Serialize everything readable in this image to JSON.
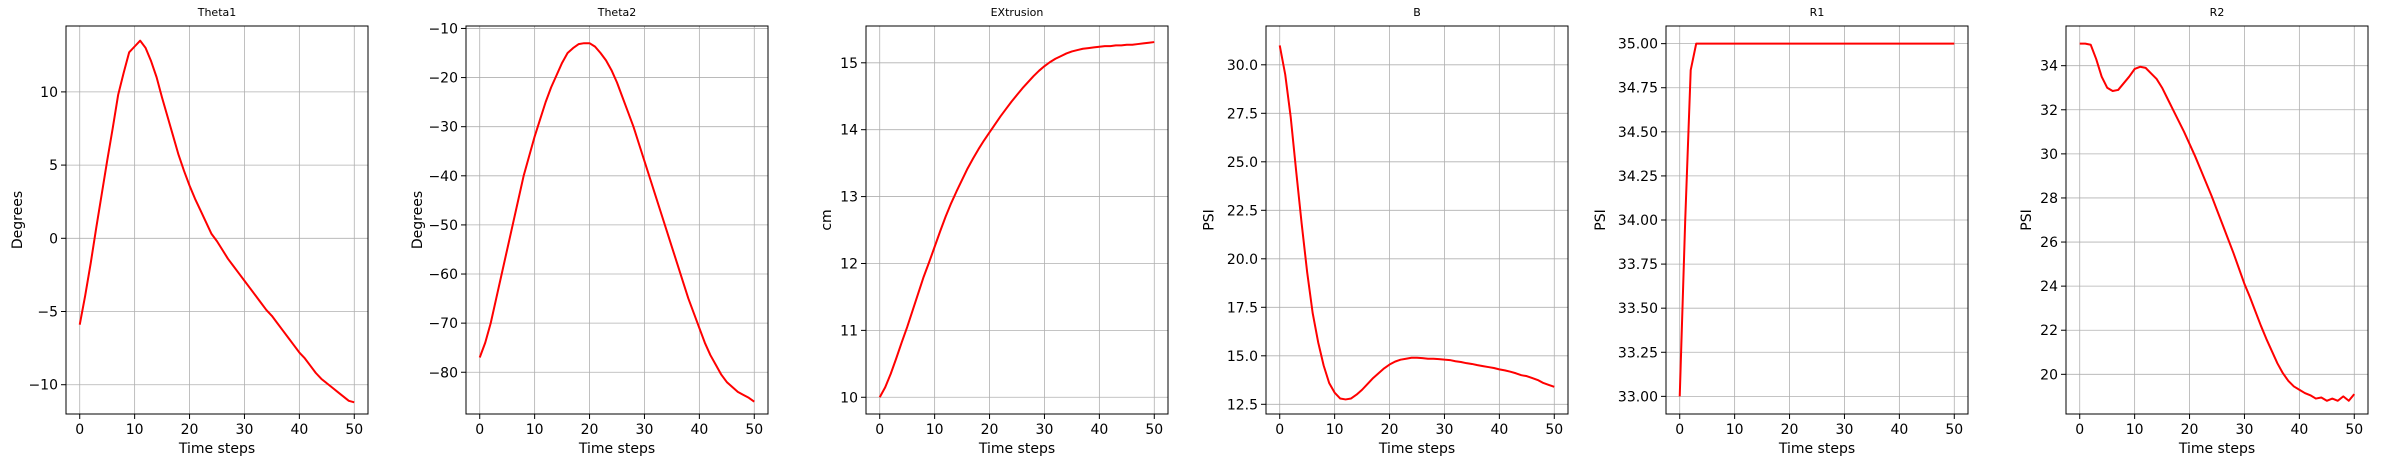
{
  "chart_data": [
    {
      "type": "line",
      "title": "Theta1",
      "xlabel": "Time steps",
      "ylabel": "Degrees",
      "xlim": [
        -2.5,
        52.5
      ],
      "ylim": [
        -12,
        14.5
      ],
      "xticks": [
        0,
        10,
        20,
        30,
        40,
        50
      ],
      "yticks": [
        -10,
        -5,
        0,
        5,
        10
      ],
      "grid": true,
      "color": "#ff0000",
      "x": [
        0,
        1,
        2,
        3,
        4,
        5,
        6,
        7,
        8,
        9,
        10,
        11,
        12,
        13,
        14,
        15,
        16,
        17,
        18,
        19,
        20,
        21,
        22,
        23,
        24,
        25,
        26,
        27,
        28,
        29,
        30,
        31,
        32,
        33,
        34,
        35,
        36,
        37,
        38,
        39,
        40,
        41,
        42,
        43,
        44,
        45,
        46,
        47,
        48,
        49,
        50
      ],
      "y": [
        -5.9,
        -3.9,
        -1.7,
        0.7,
        3.0,
        5.3,
        7.5,
        9.8,
        11.3,
        12.7,
        13.1,
        13.5,
        13.0,
        12.1,
        11.0,
        9.6,
        8.3,
        7.0,
        5.7,
        4.6,
        3.6,
        2.7,
        1.9,
        1.1,
        0.3,
        -0.2,
        -0.8,
        -1.4,
        -1.9,
        -2.4,
        -2.9,
        -3.4,
        -3.9,
        -4.4,
        -4.9,
        -5.3,
        -5.8,
        -6.3,
        -6.8,
        -7.3,
        -7.8,
        -8.2,
        -8.7,
        -9.2,
        -9.6,
        -9.9,
        -10.2,
        -10.5,
        -10.8,
        -11.1,
        -11.2
      ]
    },
    {
      "type": "line",
      "title": "Theta2",
      "xlabel": "Time steps",
      "ylabel": "Degrees",
      "xlim": [
        -2.5,
        52.5
      ],
      "ylim": [
        -88.5,
        -9.5
      ],
      "xticks": [
        0,
        10,
        20,
        30,
        40,
        50
      ],
      "yticks": [
        -80,
        -70,
        -60,
        -50,
        -40,
        -30,
        -20,
        -10
      ],
      "grid": true,
      "color": "#ff0000",
      "x": [
        0,
        1,
        2,
        3,
        4,
        5,
        6,
        7,
        8,
        9,
        10,
        11,
        12,
        13,
        14,
        15,
        16,
        17,
        18,
        19,
        20,
        21,
        22,
        23,
        24,
        25,
        26,
        27,
        28,
        29,
        30,
        31,
        32,
        33,
        34,
        35,
        36,
        37,
        38,
        39,
        40,
        41,
        42,
        43,
        44,
        45,
        46,
        47,
        48,
        49,
        50
      ],
      "y": [
        -77,
        -74,
        -70,
        -65,
        -60,
        -55,
        -50,
        -45,
        -40,
        -36,
        -32,
        -28.5,
        -25,
        -22,
        -19.5,
        -17,
        -15,
        -14,
        -13.2,
        -13,
        -13,
        -13.7,
        -15,
        -16.5,
        -18.5,
        -21,
        -24,
        -27,
        -30,
        -33.5,
        -37,
        -40.5,
        -44,
        -47.5,
        -51,
        -54.5,
        -58,
        -61.5,
        -65,
        -68,
        -71,
        -74,
        -76.5,
        -78.5,
        -80.5,
        -82,
        -83,
        -84,
        -84.6,
        -85.2,
        -86
      ]
    },
    {
      "type": "line",
      "title": "EXtrusion",
      "xlabel": "Time steps",
      "ylabel": "cm",
      "xlim": [
        -2.5,
        52.5
      ],
      "ylim": [
        9.75,
        15.55
      ],
      "xticks": [
        0,
        10,
        20,
        30,
        40,
        50
      ],
      "yticks": [
        10,
        11,
        12,
        13,
        14,
        15
      ],
      "grid": true,
      "color": "#ff0000",
      "x": [
        0,
        1,
        2,
        3,
        4,
        5,
        6,
        7,
        8,
        9,
        10,
        11,
        12,
        13,
        14,
        15,
        16,
        17,
        18,
        19,
        20,
        21,
        22,
        23,
        24,
        25,
        26,
        27,
        28,
        29,
        30,
        31,
        32,
        33,
        34,
        35,
        36,
        37,
        38,
        39,
        40,
        41,
        42,
        43,
        44,
        45,
        46,
        47,
        48,
        49,
        50
      ],
      "y": [
        10.0,
        10.15,
        10.35,
        10.58,
        10.82,
        11.05,
        11.3,
        11.55,
        11.8,
        12.02,
        12.25,
        12.48,
        12.7,
        12.9,
        13.08,
        13.25,
        13.42,
        13.57,
        13.71,
        13.84,
        13.96,
        14.08,
        14.2,
        14.31,
        14.42,
        14.52,
        14.62,
        14.71,
        14.8,
        14.88,
        14.95,
        15.01,
        15.06,
        15.1,
        15.14,
        15.17,
        15.19,
        15.21,
        15.22,
        15.23,
        15.24,
        15.25,
        15.25,
        15.26,
        15.26,
        15.27,
        15.27,
        15.28,
        15.29,
        15.3,
        15.31
      ]
    },
    {
      "type": "line",
      "title": "B",
      "xlabel": "Time steps",
      "ylabel": "PSI",
      "xlim": [
        -2.5,
        52.5
      ],
      "ylim": [
        12.0,
        32.0
      ],
      "xticks": [
        0,
        10,
        20,
        30,
        40,
        50
      ],
      "yticks": [
        12.5,
        15.0,
        17.5,
        20.0,
        22.5,
        25.0,
        27.5,
        30.0
      ],
      "tick_labels_y": [
        "12.5",
        "15.0",
        "17.5",
        "20.0",
        "22.5",
        "25.0",
        "27.5",
        "30.0"
      ],
      "grid": true,
      "color": "#ff0000",
      "x": [
        0,
        1,
        2,
        3,
        4,
        5,
        6,
        7,
        8,
        9,
        10,
        11,
        12,
        13,
        14,
        15,
        16,
        17,
        18,
        19,
        20,
        21,
        22,
        23,
        24,
        25,
        26,
        27,
        28,
        29,
        30,
        31,
        32,
        33,
        34,
        35,
        36,
        37,
        38,
        39,
        40,
        41,
        42,
        43,
        44,
        45,
        46,
        47,
        48,
        49,
        50
      ],
      "y": [
        31.0,
        29.5,
        27.3,
        24.5,
        21.8,
        19.3,
        17.2,
        15.7,
        14.5,
        13.6,
        13.1,
        12.8,
        12.75,
        12.8,
        13.0,
        13.25,
        13.55,
        13.85,
        14.1,
        14.35,
        14.55,
        14.7,
        14.8,
        14.85,
        14.9,
        14.9,
        14.88,
        14.85,
        14.85,
        14.83,
        14.8,
        14.78,
        14.72,
        14.68,
        14.62,
        14.58,
        14.52,
        14.47,
        14.42,
        14.37,
        14.3,
        14.25,
        14.18,
        14.1,
        14.0,
        13.95,
        13.85,
        13.75,
        13.6,
        13.5,
        13.4
      ]
    },
    {
      "type": "line",
      "title": "R1",
      "xlabel": "Time steps",
      "ylabel": "PSI",
      "xlim": [
        -2.5,
        52.5
      ],
      "ylim": [
        32.9,
        35.1
      ],
      "xticks": [
        0,
        10,
        20,
        30,
        40,
        50
      ],
      "yticks": [
        33.0,
        33.25,
        33.5,
        33.75,
        34.0,
        34.25,
        34.5,
        34.75,
        35.0
      ],
      "tick_labels_y": [
        "33.00",
        "33.25",
        "33.50",
        "33.75",
        "34.00",
        "34.25",
        "34.50",
        "34.75",
        "35.00"
      ],
      "grid": true,
      "color": "#ff0000",
      "x": [
        0,
        1,
        2,
        3,
        4,
        5,
        6,
        7,
        8,
        9,
        10,
        11,
        12,
        13,
        14,
        15,
        16,
        17,
        18,
        19,
        20,
        21,
        22,
        23,
        24,
        25,
        26,
        27,
        28,
        29,
        30,
        31,
        32,
        33,
        34,
        35,
        36,
        37,
        38,
        39,
        40,
        41,
        42,
        43,
        44,
        45,
        46,
        47,
        48,
        49,
        50
      ],
      "y": [
        33.0,
        34.0,
        34.85,
        35.0,
        35.0,
        35.0,
        35.0,
        35.0,
        35.0,
        35.0,
        35.0,
        35.0,
        35.0,
        35.0,
        35.0,
        35.0,
        35.0,
        35.0,
        35.0,
        35.0,
        35.0,
        35.0,
        35.0,
        35.0,
        35.0,
        35.0,
        35.0,
        35.0,
        35.0,
        35.0,
        35.0,
        35.0,
        35.0,
        35.0,
        35.0,
        35.0,
        35.0,
        35.0,
        35.0,
        35.0,
        35.0,
        35.0,
        35.0,
        35.0,
        35.0,
        35.0,
        35.0,
        35.0,
        35.0,
        35.0,
        35.0
      ]
    },
    {
      "type": "line",
      "title": "R2",
      "xlabel": "Time steps",
      "ylabel": "PSI",
      "xlim": [
        -2.5,
        52.5
      ],
      "ylim": [
        18.2,
        35.8
      ],
      "xticks": [
        0,
        10,
        20,
        30,
        40,
        50
      ],
      "yticks": [
        20,
        22,
        24,
        26,
        28,
        30,
        32,
        34
      ],
      "grid": true,
      "color": "#ff0000",
      "x": [
        0,
        1,
        2,
        3,
        4,
        5,
        6,
        7,
        8,
        9,
        10,
        11,
        12,
        13,
        14,
        15,
        16,
        17,
        18,
        19,
        20,
        21,
        22,
        23,
        24,
        25,
        26,
        27,
        28,
        29,
        30,
        31,
        32,
        33,
        34,
        35,
        36,
        37,
        38,
        39,
        40,
        41,
        42,
        43,
        44,
        45,
        46,
        47,
        48,
        49,
        50
      ],
      "y": [
        35.0,
        35.0,
        34.95,
        34.3,
        33.5,
        33.0,
        32.85,
        32.9,
        33.2,
        33.5,
        33.85,
        33.95,
        33.9,
        33.65,
        33.4,
        33.0,
        32.5,
        32.0,
        31.5,
        31.0,
        30.45,
        29.9,
        29.3,
        28.7,
        28.1,
        27.45,
        26.8,
        26.15,
        25.5,
        24.8,
        24.1,
        23.5,
        22.85,
        22.2,
        21.6,
        21.05,
        20.5,
        20.05,
        19.7,
        19.45,
        19.3,
        19.15,
        19.05,
        18.9,
        18.95,
        18.8,
        18.9,
        18.8,
        19.0,
        18.8,
        19.1
      ]
    }
  ]
}
